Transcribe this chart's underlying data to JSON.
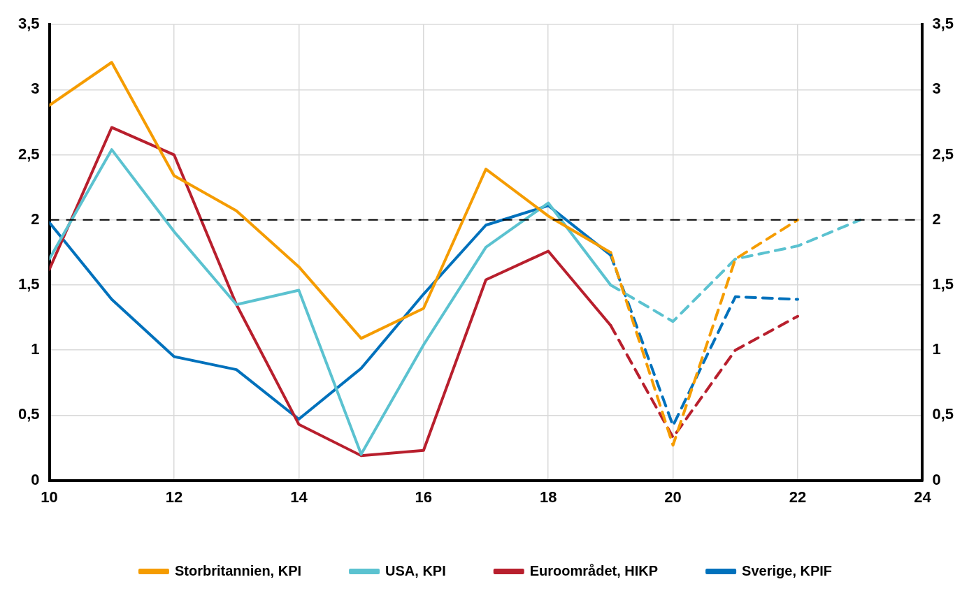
{
  "chart_data": {
    "type": "line",
    "xlim": [
      10,
      24
    ],
    "xticks": [
      10,
      12,
      14,
      16,
      18,
      20,
      22,
      24
    ],
    "ylim": [
      0,
      3.5
    ],
    "yticks": [
      0,
      {
        "value": 0.5,
        "label": "0,5"
      },
      1,
      {
        "value": 1.5,
        "label": "1,5"
      },
      2,
      {
        "value": 2.5,
        "label": "2,5"
      },
      3,
      {
        "value": 3.5,
        "label": "3,5"
      }
    ],
    "y2lim": [
      0,
      3.5
    ],
    "y2ticks": [
      0,
      {
        "value": 0.5,
        "label": "0,5"
      },
      1,
      {
        "value": 1.5,
        "label": "1,5"
      },
      2,
      {
        "value": 2.5,
        "label": "2,5"
      },
      3,
      {
        "value": 3.5,
        "label": "3,5"
      }
    ],
    "grid": true,
    "legend": "bottom",
    "marker": "none",
    "ref_lines": [
      {
        "axis": "y",
        "value": 2,
        "color": "#000000",
        "line_style": "dashed"
      }
    ],
    "series": [
      {
        "name": "Storbritannien, KPI",
        "color": "#f59c00",
        "line_style": "solid",
        "x": [
          10,
          11,
          12,
          13,
          14,
          15,
          16,
          17,
          18,
          19
        ],
        "values": [
          2.88,
          3.21,
          2.34,
          2.07,
          1.64,
          1.09,
          1.32,
          2.39,
          2.03,
          1.75
        ]
      },
      {
        "name": "USA, KPI",
        "color": "#5bc2d0",
        "line_style": "solid",
        "x": [
          10,
          11,
          12,
          13,
          14,
          15,
          16,
          17,
          18,
          19
        ],
        "values": [
          1.7,
          2.54,
          1.91,
          1.35,
          1.46,
          0.2,
          1.04,
          1.79,
          2.13,
          1.5
        ]
      },
      {
        "name": "Euroområdet, HIKP",
        "color": "#b81f2d",
        "line_style": "solid",
        "x": [
          10,
          11,
          12,
          13,
          14,
          15,
          16,
          17,
          18,
          19
        ],
        "values": [
          1.62,
          2.71,
          2.5,
          1.35,
          0.43,
          0.19,
          0.23,
          1.54,
          1.76,
          1.19
        ]
      },
      {
        "name": "Sverige, KPIF",
        "color": "#0071bc",
        "line_style": "solid",
        "x": [
          10,
          11,
          12,
          13,
          14,
          15,
          16,
          17,
          18,
          19
        ],
        "values": [
          1.98,
          1.39,
          0.95,
          0.85,
          0.47,
          0.86,
          1.43,
          1.96,
          2.11,
          1.73
        ]
      },
      {
        "color": "#f59c00",
        "line_style": "dashed",
        "x": [
          19,
          20,
          21,
          22
        ],
        "values": [
          1.75,
          0.27,
          1.7,
          2.0
        ]
      },
      {
        "color": "#5bc2d0",
        "line_style": "dashed",
        "x": [
          19,
          20,
          21,
          22,
          23
        ],
        "values": [
          1.5,
          1.22,
          1.7,
          1.8,
          2.0
        ]
      },
      {
        "color": "#b81f2d",
        "line_style": "dashed",
        "x": [
          19,
          20,
          21,
          22
        ],
        "values": [
          1.19,
          0.33,
          1.0,
          1.26
        ]
      },
      {
        "color": "#0071bc",
        "line_style": "dashed",
        "x": [
          19,
          20,
          21,
          22
        ],
        "values": [
          1.73,
          0.42,
          1.41,
          1.39
        ]
      }
    ]
  }
}
